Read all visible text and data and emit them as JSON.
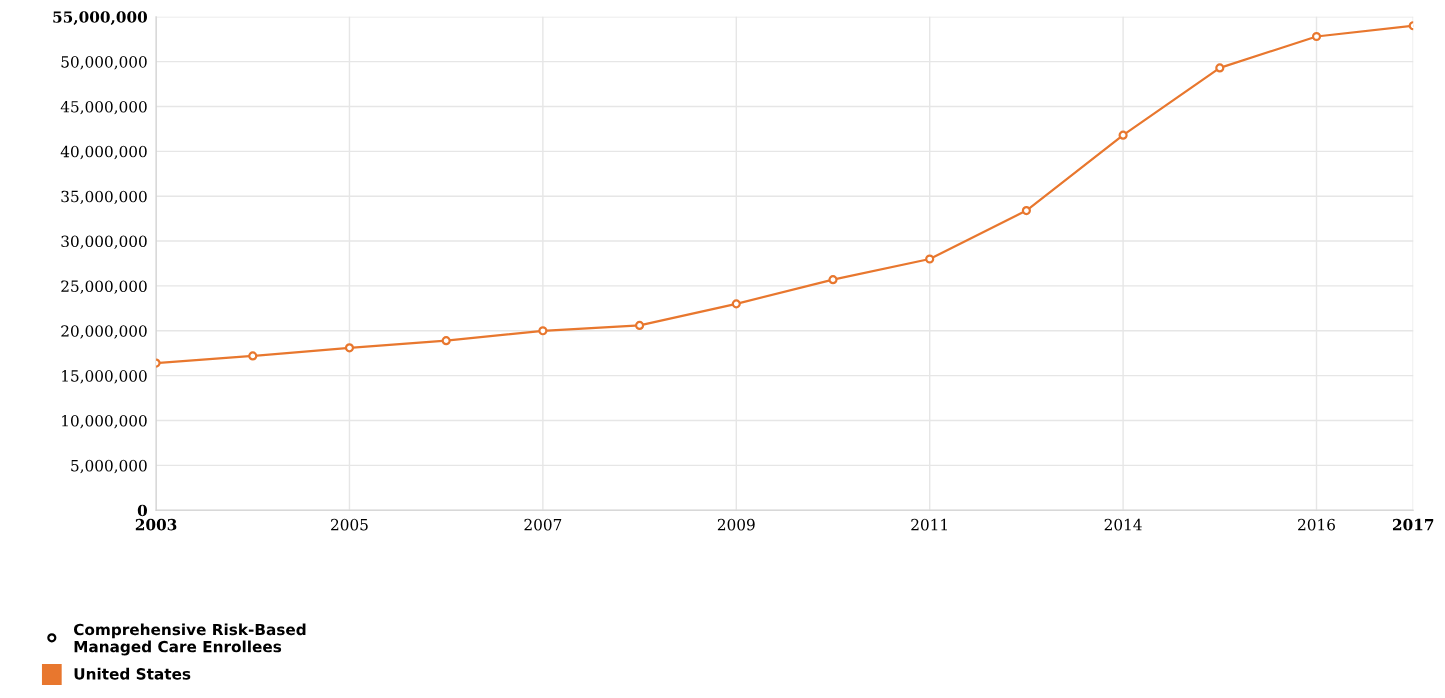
{
  "chart_data": {
    "type": "line",
    "categories": [
      "2003",
      null,
      "2005",
      null,
      "2007",
      null,
      "2009",
      null,
      "2011",
      null,
      "2014",
      null,
      "2016",
      "2017"
    ],
    "series": [
      {
        "name": "United States",
        "color": "#e8772e",
        "values": [
          16400000,
          17200000,
          18100000,
          18900000,
          20000000,
          20600000,
          23000000,
          25700000,
          28000000,
          33400000,
          41800000,
          49300000,
          52800000,
          54000000
        ]
      }
    ],
    "legend_title": "Comprehensive Risk-Based\nManaged Care Enrollees",
    "ylim": [
      0,
      55000000
    ],
    "yticks": [
      {
        "value": 0,
        "label": "0"
      },
      {
        "value": 5000000,
        "label": "5,000,000"
      },
      {
        "value": 10000000,
        "label": "10,000,000"
      },
      {
        "value": 15000000,
        "label": "15,000,000"
      },
      {
        "value": 20000000,
        "label": "20,000,000"
      },
      {
        "value": 25000000,
        "label": "25,000,000"
      },
      {
        "value": 30000000,
        "label": "30,000,000"
      },
      {
        "value": 35000000,
        "label": "35,000,000"
      },
      {
        "value": 40000000,
        "label": "40,000,000"
      },
      {
        "value": 45000000,
        "label": "45,000,000"
      },
      {
        "value": 50000000,
        "label": "50,000,000"
      },
      {
        "value": 55000000,
        "label": "55,000,000"
      }
    ],
    "grid": true,
    "legend": "bottom left",
    "marker": "circle",
    "line_style": "solid"
  }
}
